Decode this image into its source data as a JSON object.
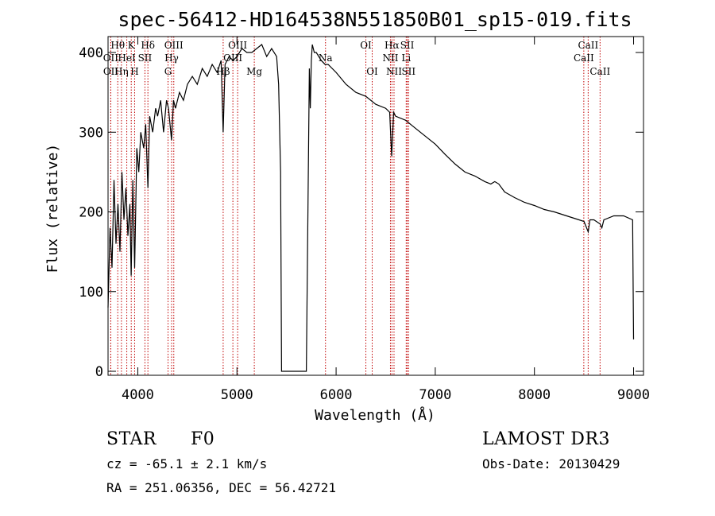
{
  "chart_data": {
    "type": "line",
    "title": "spec-56412-HD164538N551850B01_sp15-019.fits",
    "xlabel": "Wavelength (Å)",
    "ylabel": "Flux (relative)",
    "xlim": [
      3700,
      9100
    ],
    "ylim": [
      -5,
      420
    ],
    "xticks": [
      4000,
      5000,
      6000,
      7000,
      8000,
      9000
    ],
    "yticks": [
      0,
      100,
      200,
      300,
      400
    ],
    "series": [
      {
        "name": "flux",
        "x": [
          3700,
          3720,
          3740,
          3760,
          3780,
          3800,
          3820,
          3840,
          3860,
          3880,
          3900,
          3920,
          3933,
          3950,
          3968,
          3990,
          4010,
          4030,
          4060,
          4080,
          4102,
          4120,
          4150,
          4180,
          4200,
          4230,
          4260,
          4290,
          4310,
          4340,
          4360,
          4380,
          4420,
          4460,
          4500,
          4550,
          4600,
          4650,
          4700,
          4750,
          4800,
          4840,
          4861,
          4880,
          4920,
          4960,
          5000,
          5050,
          5100,
          5150,
          5200,
          5250,
          5300,
          5350,
          5400,
          5420,
          5440,
          5450,
          5460,
          5700,
          5720,
          5730,
          5740,
          5750,
          5760,
          5780,
          5800,
          5850,
          5890,
          5920,
          6000,
          6100,
          6200,
          6300,
          6400,
          6500,
          6540,
          6560,
          6580,
          6600,
          6700,
          6800,
          6900,
          7000,
          7100,
          7200,
          7300,
          7400,
          7500,
          7560,
          7600,
          7640,
          7700,
          7800,
          7900,
          8000,
          8100,
          8200,
          8300,
          8400,
          8500,
          8542,
          8560,
          8600,
          8662,
          8680,
          8700,
          8800,
          8900,
          8990,
          9000
        ],
        "y": [
          80,
          180,
          130,
          240,
          160,
          210,
          150,
          250,
          190,
          230,
          170,
          210,
          120,
          240,
          130,
          280,
          250,
          300,
          280,
          310,
          230,
          320,
          300,
          330,
          320,
          340,
          300,
          340,
          330,
          290,
          340,
          330,
          350,
          340,
          360,
          370,
          360,
          380,
          370,
          385,
          375,
          390,
          300,
          385,
          395,
          390,
          395,
          405,
          400,
          400,
          405,
          410,
          395,
          405,
          395,
          360,
          250,
          0,
          0,
          0,
          250,
          380,
          330,
          390,
          410,
          400,
          400,
          390,
          385,
          385,
          375,
          360,
          350,
          345,
          335,
          330,
          325,
          270,
          325,
          320,
          315,
          305,
          295,
          285,
          272,
          260,
          250,
          245,
          238,
          235,
          238,
          235,
          225,
          218,
          212,
          208,
          203,
          200,
          196,
          192,
          188,
          175,
          190,
          190,
          185,
          180,
          190,
          195,
          195,
          190,
          40
        ]
      }
    ],
    "lines": [
      {
        "label": "Hθ",
        "x": 3798,
        "row": 0
      },
      {
        "label": "OII",
        "x": 3727,
        "row": 1
      },
      {
        "label": "OII",
        "x": 3728,
        "row": 2
      },
      {
        "label": "K",
        "x": 3934,
        "row": 0
      },
      {
        "label": "HeI",
        "x": 3889,
        "row": 1
      },
      {
        "label": "Hη",
        "x": 3835,
        "row": 2
      },
      {
        "label": "H",
        "x": 3968,
        "row": 2
      },
      {
        "label": "Hδ",
        "x": 4102,
        "row": 0
      },
      {
        "label": "SII",
        "x": 4072,
        "row": 1
      },
      {
        "label": "OIII",
        "x": 4363,
        "row": 0
      },
      {
        "label": "Hγ",
        "x": 4341,
        "row": 1
      },
      {
        "label": "G",
        "x": 4305,
        "row": 2
      },
      {
        "label": "OIII",
        "x": 5007,
        "row": 0
      },
      {
        "label": "OIII",
        "x": 4959,
        "row": 1
      },
      {
        "label": "Hβ",
        "x": 4861,
        "row": 2
      },
      {
        "label": "Mg",
        "x": 5175,
        "row": 2
      },
      {
        "label": "Na",
        "x": 5893,
        "row": 1
      },
      {
        "label": "OI",
        "x": 6300,
        "row": 0
      },
      {
        "label": "OI",
        "x": 6364,
        "row": 2
      },
      {
        "label": "Hα",
        "x": 6563,
        "row": 0
      },
      {
        "label": "NII",
        "x": 6548,
        "row": 1
      },
      {
        "label": "NII",
        "x": 6584,
        "row": 2
      },
      {
        "label": "SII",
        "x": 6717,
        "row": 0
      },
      {
        "label": "Li",
        "x": 6707,
        "row": 1
      },
      {
        "label": "SII",
        "x": 6731,
        "row": 2
      },
      {
        "label": "CaII",
        "x": 8542,
        "row": 0
      },
      {
        "label": "CaII",
        "x": 8498,
        "row": 1
      },
      {
        "label": "CaII",
        "x": 8662,
        "row": 2
      }
    ]
  },
  "info": {
    "object_type": "STAR",
    "subclass": "F0",
    "survey": "LAMOST DR3",
    "cz": "cz = -65.1 ± 2.1 km/s",
    "obs_date": "Obs-Date: 20130429",
    "coords": "RA = 251.06356, DEC =  56.42721"
  }
}
